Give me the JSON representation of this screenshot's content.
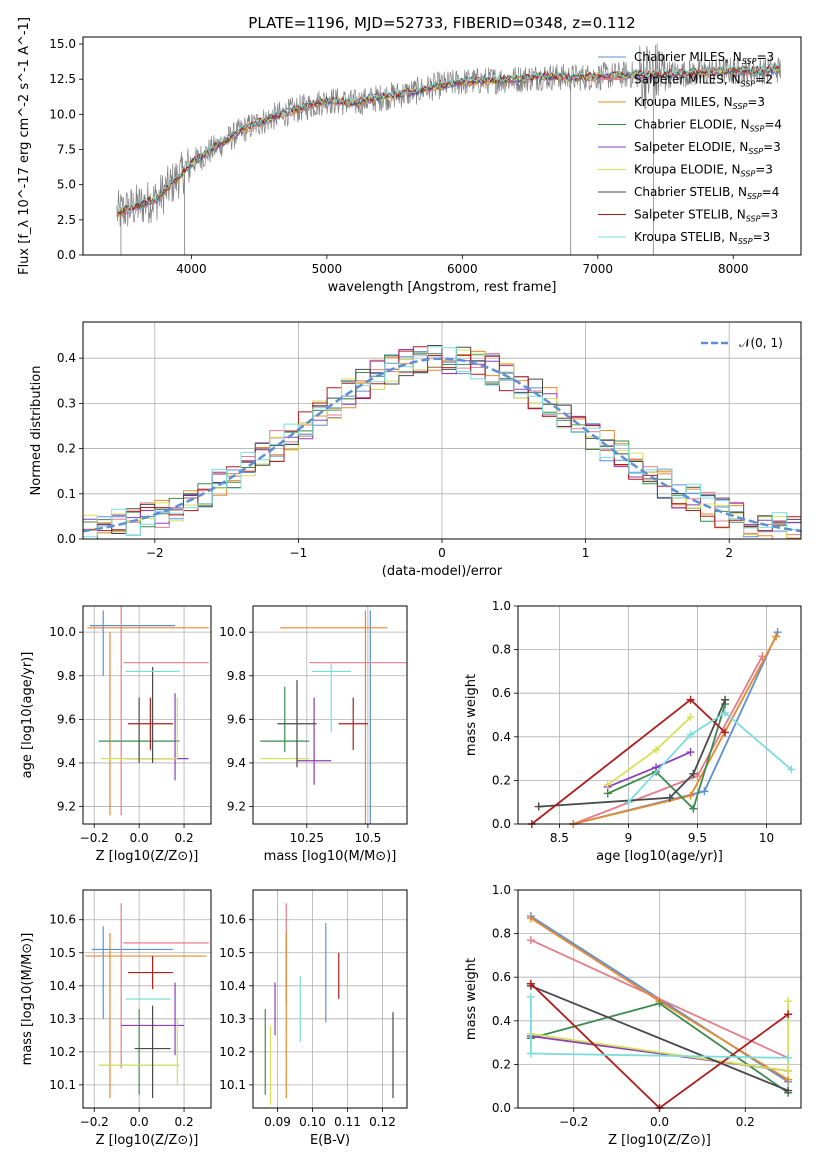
{
  "figure": {
    "title": "PLATE=1196, MJD=52733, FIBERID=0348, z=0.112"
  },
  "colors": {
    "chabrier_miles": "#5b8fd6",
    "salpeter_miles": "#e47d8b",
    "kroupa_miles": "#e8892b",
    "chabrier_elodie": "#3f8a4f",
    "salpeter_elodie": "#8b3fb8",
    "kroupa_elodie": "#d5e05a",
    "chabrier_stelib": "#4a4a4a",
    "salpeter_stelib": "#b01c1c",
    "kroupa_stelib": "#7ddcdc",
    "data": "#808080",
    "gauss": "#5b8fd6"
  },
  "legend": {
    "items": [
      {
        "key": "chabrier_miles",
        "label": "Chabrier MILES, N",
        "sub": "SSP",
        "tail": "=3"
      },
      {
        "key": "salpeter_miles",
        "label": "Salpeter MILES, N",
        "sub": "SSP",
        "tail": "=2"
      },
      {
        "key": "kroupa_miles",
        "label": "Kroupa MILES, N",
        "sub": "SSP",
        "tail": "=3"
      },
      {
        "key": "chabrier_elodie",
        "label": "Chabrier ELODIE, N",
        "sub": "SSP",
        "tail": "=4"
      },
      {
        "key": "salpeter_elodie",
        "label": "Salpeter ELODIE, N",
        "sub": "SSP",
        "tail": "=3"
      },
      {
        "key": "kroupa_elodie",
        "label": "Kroupa ELODIE, N",
        "sub": "SSP",
        "tail": "=3"
      },
      {
        "key": "chabrier_stelib",
        "label": "Chabrier STELIB, N",
        "sub": "SSP",
        "tail": "=4"
      },
      {
        "key": "salpeter_stelib",
        "label": "Salpeter STELIB, N",
        "sub": "SSP",
        "tail": "=3"
      },
      {
        "key": "kroupa_stelib",
        "label": "Kroupa STELIB, N",
        "sub": "SSP",
        "tail": "=3"
      }
    ],
    "gauss_label": "𝒩(0, 1)"
  },
  "chart_data": [
    {
      "id": "spectrum",
      "type": "line",
      "xlabel": "wavelength [Angstrom, rest frame]",
      "ylabel": "Flux [f_λ 10^-17 erg cm^-2 s^-1 A^-1]",
      "xlim": [
        3200,
        8500
      ],
      "ylim": [
        0,
        15.5
      ],
      "xticks": [
        4000,
        5000,
        6000,
        7000,
        8000
      ],
      "yticks": [
        0.0,
        2.5,
        5.0,
        7.5,
        10.0,
        12.5,
        15.0
      ],
      "grid": false,
      "legend_position": "top-right",
      "continuum": {
        "x": [
          3450,
          3600,
          3750,
          3900,
          4000,
          4200,
          4400,
          4600,
          4800,
          5000,
          5200,
          5400,
          5600,
          5800,
          6000,
          6200,
          6400,
          6600,
          6800,
          7000,
          7200,
          7400,
          7600,
          7800,
          8000,
          8200,
          8350
        ],
        "y": [
          3.0,
          3.5,
          4.0,
          5.5,
          6.5,
          7.8,
          9.0,
          9.8,
          10.4,
          11.0,
          10.8,
          11.2,
          11.5,
          12.0,
          12.3,
          12.4,
          12.5,
          12.7,
          12.6,
          12.7,
          12.8,
          12.8,
          12.9,
          13.0,
          13.1,
          13.1,
          13.2
        ]
      },
      "data_dips": [
        {
          "x": 3480,
          "y": 0.0
        },
        {
          "x": 3950,
          "y": 0.0
        },
        {
          "x": 6800,
          "y": 0.0
        },
        {
          "x": 7410,
          "y": 0.0
        }
      ],
      "series": [
        "chabrier_miles",
        "salpeter_miles",
        "kroupa_miles",
        "chabrier_elodie",
        "salpeter_elodie",
        "kroupa_elodie",
        "chabrier_stelib",
        "salpeter_stelib",
        "kroupa_stelib"
      ]
    },
    {
      "id": "residuals",
      "type": "bar",
      "xlabel": "(data-model)/error",
      "ylabel": "Normed distribution",
      "xlim": [
        -2.5,
        2.5
      ],
      "ylim": [
        0,
        0.48
      ],
      "xticks": [
        -2,
        -1,
        0,
        1,
        2
      ],
      "xticklabels": [
        "−2",
        "−1",
        "0",
        "1",
        "2"
      ],
      "yticks": [
        0.0,
        0.1,
        0.2,
        0.3,
        0.4
      ],
      "grid": true,
      "bin_width": 0.1,
      "gauss": {
        "mean": 0,
        "sigma": 1
      }
    },
    {
      "id": "age_vs_Z",
      "type": "scatter",
      "xlabel": "Z [log10(Z/Z⊙)]",
      "ylabel": "age [log10(age/yr)]",
      "xlim": [
        -0.25,
        0.32
      ],
      "ylim": [
        9.12,
        10.12
      ],
      "xticks": [
        -0.2,
        0.0,
        0.2
      ],
      "xticklabels": [
        "−0.2",
        "0.0",
        "0.2"
      ],
      "yticks": [
        9.2,
        9.4,
        9.6,
        9.8,
        10.0
      ],
      "grid": true,
      "points": [
        {
          "key": "chabrier_miles",
          "x": -0.03,
          "xerr": 0.19,
          "y": 10.03,
          "yerr": 0.0
        },
        {
          "key": "chabrier_miles",
          "x": -0.16,
          "xerr": 0.0,
          "y": 9.95,
          "yerr": 0.15
        },
        {
          "key": "salpeter_miles",
          "x": 0.12,
          "xerr": 0.19,
          "y": 9.86,
          "yerr": 0.0
        },
        {
          "key": "salpeter_miles",
          "x": -0.08,
          "xerr": 0.0,
          "y": 9.64,
          "yerr": 0.48
        },
        {
          "key": "kroupa_miles",
          "x": 0.04,
          "xerr": 0.27,
          "y": 10.02,
          "yerr": 0.0
        },
        {
          "key": "kroupa_miles",
          "x": -0.13,
          "xerr": 0.0,
          "y": 9.58,
          "yerr": 0.42
        },
        {
          "key": "chabrier_elodie",
          "x": 0.0,
          "xerr": 0.18,
          "y": 9.5,
          "yerr": 0.0
        },
        {
          "key": "salpeter_elodie",
          "x": 0.16,
          "xerr": 0.0,
          "y": 9.52,
          "yerr": 0.2
        },
        {
          "key": "salpeter_elodie",
          "x": 0.08,
          "xerr": 0.14,
          "y": 9.42,
          "yerr": 0.0
        },
        {
          "key": "kroupa_elodie",
          "x": 0.17,
          "xerr": 0.0,
          "y": 9.56,
          "yerr": 0.14
        },
        {
          "key": "kroupa_elodie",
          "x": 0.0,
          "xerr": 0.17,
          "y": 9.42,
          "yerr": 0.0
        },
        {
          "key": "chabrier_stelib",
          "x": 0.06,
          "xerr": 0.0,
          "y": 9.62,
          "yerr": 0.22
        },
        {
          "key": "chabrier_stelib",
          "x": 0.0,
          "xerr": 0.0,
          "y": 9.55,
          "yerr": 0.15
        },
        {
          "key": "salpeter_stelib",
          "x": 0.05,
          "xerr": 0.1,
          "y": 9.58,
          "yerr": 0.12
        },
        {
          "key": "kroupa_stelib",
          "x": 0.06,
          "xerr": 0.12,
          "y": 9.82,
          "yerr": 0.0
        }
      ]
    },
    {
      "id": "age_vs_mass",
      "type": "scatter",
      "xlabel": "mass [log10(M/M⊙)]",
      "ylabel": "",
      "xlim": [
        10.03,
        10.66
      ],
      "ylim": [
        9.12,
        10.12
      ],
      "xticks": [
        10.25,
        10.5
      ],
      "yticks": [
        9.2,
        9.4,
        9.6,
        9.8,
        10.0
      ],
      "grid": true,
      "points": [
        {
          "key": "chabrier_miles",
          "x": 10.51,
          "xerr": 0.0,
          "y": 9.6,
          "yerr": 0.5
        },
        {
          "key": "salpeter_miles",
          "x": 10.46,
          "xerr": 0.2,
          "y": 9.86,
          "yerr": 0.0
        },
        {
          "key": "kroupa_miles",
          "x": 10.49,
          "xerr": 0.0,
          "y": 9.6,
          "yerr": 0.5
        },
        {
          "key": "kroupa_miles",
          "x": 10.36,
          "xerr": 0.22,
          "y": 10.02,
          "yerr": 0.0
        },
        {
          "key": "chabrier_elodie",
          "x": 10.16,
          "xerr": 0.1,
          "y": 9.5,
          "yerr": 0.0
        },
        {
          "key": "chabrier_elodie",
          "x": 10.16,
          "xerr": 0.0,
          "y": 9.6,
          "yerr": 0.15
        },
        {
          "key": "salpeter_elodie",
          "x": 10.28,
          "xerr": 0.0,
          "y": 9.5,
          "yerr": 0.2
        },
        {
          "key": "salpeter_elodie",
          "x": 10.28,
          "xerr": 0.07,
          "y": 9.41,
          "yerr": 0.0
        },
        {
          "key": "kroupa_elodie",
          "x": 10.16,
          "xerr": 0.1,
          "y": 9.42,
          "yerr": 0.0
        },
        {
          "key": "chabrier_stelib",
          "x": 10.21,
          "xerr": 0.0,
          "y": 9.58,
          "yerr": 0.2
        },
        {
          "key": "chabrier_stelib",
          "x": 10.21,
          "xerr": 0.08,
          "y": 9.58,
          "yerr": 0.0
        },
        {
          "key": "salpeter_stelib",
          "x": 10.44,
          "xerr": 0.06,
          "y": 9.58,
          "yerr": 0.0
        },
        {
          "key": "salpeter_stelib",
          "x": 10.44,
          "xerr": 0.0,
          "y": 9.58,
          "yerr": 0.12
        },
        {
          "key": "kroupa_stelib",
          "x": 10.35,
          "xerr": 0.08,
          "y": 9.82,
          "yerr": 0.0
        },
        {
          "key": "kroupa_stelib",
          "x": 10.35,
          "xerr": 0.0,
          "y": 9.7,
          "yerr": 0.16
        }
      ]
    },
    {
      "id": "weight_vs_age",
      "type": "line",
      "xlabel": "age [log10(age/yr)]",
      "ylabel": "mass weight",
      "xlim": [
        8.2,
        10.25
      ],
      "ylim": [
        0,
        1.0
      ],
      "xticks": [
        8.5,
        9.0,
        9.5,
        10.0
      ],
      "yticks": [
        0.0,
        0.2,
        0.4,
        0.6,
        0.8,
        1.0
      ],
      "grid": true,
      "series": [
        {
          "key": "chabrier_miles",
          "x": [
            8.6,
            9.55,
            10.08
          ],
          "y": [
            0.0,
            0.15,
            0.88
          ]
        },
        {
          "key": "salpeter_miles",
          "x": [
            8.6,
            9.5,
            9.97
          ],
          "y": [
            0.0,
            0.22,
            0.77
          ]
        },
        {
          "key": "kroupa_miles",
          "x": [
            8.6,
            9.45,
            10.07
          ],
          "y": [
            0.0,
            0.13,
            0.86
          ]
        },
        {
          "key": "chabrier_elodie",
          "x": [
            8.85,
            9.2,
            9.47,
            9.7
          ],
          "y": [
            0.14,
            0.24,
            0.07,
            0.55
          ]
        },
        {
          "key": "salpeter_elodie",
          "x": [
            8.85,
            9.2,
            9.45
          ],
          "y": [
            0.17,
            0.26,
            0.33
          ]
        },
        {
          "key": "kroupa_elodie",
          "x": [
            8.85,
            9.2,
            9.45
          ],
          "y": [
            0.18,
            0.34,
            0.49
          ]
        },
        {
          "key": "chabrier_stelib",
          "x": [
            8.35,
            9.3,
            9.47,
            9.7
          ],
          "y": [
            0.08,
            0.12,
            0.23,
            0.57
          ]
        },
        {
          "key": "salpeter_stelib",
          "x": [
            8.3,
            9.45,
            9.7
          ],
          "y": [
            0.0,
            0.57,
            0.42
          ]
        },
        {
          "key": "kroupa_stelib",
          "x": [
            9.0,
            9.45,
            9.7,
            10.18
          ],
          "y": [
            0.1,
            0.41,
            0.51,
            0.25
          ]
        }
      ]
    },
    {
      "id": "mass_vs_Z",
      "type": "scatter",
      "xlabel": "Z [log10(Z/Z⊙)]",
      "ylabel": "mass [log10(M/M⊙)]",
      "xlim": [
        -0.25,
        0.32
      ],
      "ylim": [
        10.03,
        10.69
      ],
      "xticks": [
        -0.2,
        0.0,
        0.2
      ],
      "xticklabels": [
        "−0.2",
        "0.0",
        "0.2"
      ],
      "yticks": [
        10.1,
        10.2,
        10.3,
        10.4,
        10.5,
        10.6
      ],
      "grid": true,
      "points": [
        {
          "key": "chabrier_miles",
          "x": -0.03,
          "xerr": 0.18,
          "y": 10.51,
          "yerr": 0.0
        },
        {
          "key": "chabrier_miles",
          "x": -0.16,
          "xerr": 0.0,
          "y": 10.44,
          "yerr": 0.14
        },
        {
          "key": "salpeter_miles",
          "x": 0.12,
          "xerr": 0.19,
          "y": 10.53,
          "yerr": 0.0
        },
        {
          "key": "salpeter_miles",
          "x": -0.08,
          "xerr": 0.0,
          "y": 10.4,
          "yerr": 0.25
        },
        {
          "key": "kroupa_miles",
          "x": 0.03,
          "xerr": 0.27,
          "y": 10.49,
          "yerr": 0.0
        },
        {
          "key": "kroupa_miles",
          "x": -0.13,
          "xerr": 0.0,
          "y": 10.31,
          "yerr": 0.25
        },
        {
          "key": "chabrier_elodie",
          "x": 0.0,
          "xerr": 0.18,
          "y": 10.16,
          "yerr": 0.0
        },
        {
          "key": "chabrier_elodie",
          "x": 0.0,
          "xerr": 0.0,
          "y": 10.2,
          "yerr": 0.13
        },
        {
          "key": "salpeter_elodie",
          "x": 0.06,
          "xerr": 0.14,
          "y": 10.28,
          "yerr": 0.0
        },
        {
          "key": "salpeter_elodie",
          "x": 0.16,
          "xerr": 0.0,
          "y": 10.3,
          "yerr": 0.11
        },
        {
          "key": "kroupa_elodie",
          "x": 0.0,
          "xerr": 0.18,
          "y": 10.16,
          "yerr": 0.0
        },
        {
          "key": "kroupa_elodie",
          "x": 0.17,
          "xerr": 0.0,
          "y": 10.2,
          "yerr": 0.1
        },
        {
          "key": "chabrier_stelib",
          "x": 0.06,
          "xerr": 0.0,
          "y": 10.2,
          "yerr": 0.14
        },
        {
          "key": "chabrier_stelib",
          "x": 0.06,
          "xerr": 0.08,
          "y": 10.21,
          "yerr": 0.0
        },
        {
          "key": "salpeter_stelib",
          "x": 0.05,
          "xerr": 0.1,
          "y": 10.44,
          "yerr": 0.0
        },
        {
          "key": "salpeter_stelib",
          "x": 0.06,
          "xerr": 0.0,
          "y": 10.44,
          "yerr": 0.05
        },
        {
          "key": "kroupa_stelib",
          "x": 0.04,
          "xerr": 0.1,
          "y": 10.36,
          "yerr": 0.0
        }
      ]
    },
    {
      "id": "mass_vs_ebv",
      "type": "scatter",
      "xlabel": "E(B-V)",
      "ylabel": "",
      "xlim": [
        0.083,
        0.127
      ],
      "ylim": [
        10.03,
        10.69
      ],
      "xticks": [
        0.09,
        0.1,
        0.11,
        0.12
      ],
      "xticklabels": [
        "0.09",
        "0.10",
        "0.11",
        "0.12"
      ],
      "yticks": [
        10.1,
        10.2,
        10.3,
        10.4,
        10.5,
        10.6
      ],
      "grid": true,
      "points": [
        {
          "key": "chabrier_elodie",
          "x": 0.0865,
          "y": 10.2,
          "yerr": 0.13
        },
        {
          "key": "kroupa_elodie",
          "x": 0.088,
          "y": 10.16,
          "yerr": 0.12
        },
        {
          "key": "salpeter_elodie",
          "x": 0.0893,
          "y": 10.33,
          "yerr": 0.08
        },
        {
          "key": "salpeter_miles",
          "x": 0.0925,
          "y": 10.5,
          "yerr": 0.15
        },
        {
          "key": "kroupa_miles",
          "x": 0.0925,
          "y": 10.31,
          "yerr": 0.25
        },
        {
          "key": "kroupa_stelib",
          "x": 0.0965,
          "y": 10.33,
          "yerr": 0.1
        },
        {
          "key": "chabrier_miles",
          "x": 0.1038,
          "y": 10.44,
          "yerr": 0.15
        },
        {
          "key": "salpeter_stelib",
          "x": 0.1075,
          "y": 10.43,
          "yerr": 0.07
        },
        {
          "key": "chabrier_stelib",
          "x": 0.123,
          "y": 10.19,
          "yerr": 0.13
        }
      ]
    },
    {
      "id": "weight_vs_Z",
      "type": "line",
      "xlabel": "Z [log10(Z/Z⊙)]",
      "ylabel": "mass weight",
      "xlim": [
        -0.33,
        0.33
      ],
      "ylim": [
        0,
        1.0
      ],
      "xticks": [
        -0.2,
        0.0,
        0.2
      ],
      "xticklabels": [
        "−0.2",
        "0.0",
        "0.2"
      ],
      "yticks": [
        0.0,
        0.2,
        0.4,
        0.6,
        0.8,
        1.0
      ],
      "grid": true,
      "series": [
        {
          "key": "chabrier_miles",
          "x": [
            -0.3,
            0.3
          ],
          "y": [
            0.88,
            0.12
          ]
        },
        {
          "key": "salpeter_miles",
          "x": [
            -0.3,
            0.3
          ],
          "y": [
            0.77,
            0.23
          ]
        },
        {
          "key": "kroupa_miles",
          "x": [
            -0.3,
            0.0,
            0.3
          ],
          "y": [
            0.87,
            0.49,
            0.13
          ]
        },
        {
          "key": "chabrier_elodie",
          "x": [
            -0.3,
            0.0,
            0.3
          ],
          "y": [
            0.32,
            0.48,
            0.07
          ]
        },
        {
          "key": "salpeter_elodie",
          "x": [
            -0.3,
            0.3
          ],
          "y": [
            0.33,
            0.17
          ]
        },
        {
          "key": "kroupa_elodie",
          "x": [
            -0.3,
            0.3,
            0.3
          ],
          "y": [
            0.34,
            0.17,
            0.49
          ]
        },
        {
          "key": "chabrier_stelib",
          "x": [
            -0.3,
            0.3
          ],
          "y": [
            0.56,
            0.08
          ]
        },
        {
          "key": "salpeter_stelib",
          "x": [
            -0.3,
            0.0,
            0.3
          ],
          "y": [
            0.57,
            0.0,
            0.43
          ]
        },
        {
          "key": "kroupa_stelib",
          "x": [
            -0.3,
            -0.3,
            0.3
          ],
          "y": [
            0.51,
            0.25,
            0.23
          ]
        }
      ]
    }
  ]
}
